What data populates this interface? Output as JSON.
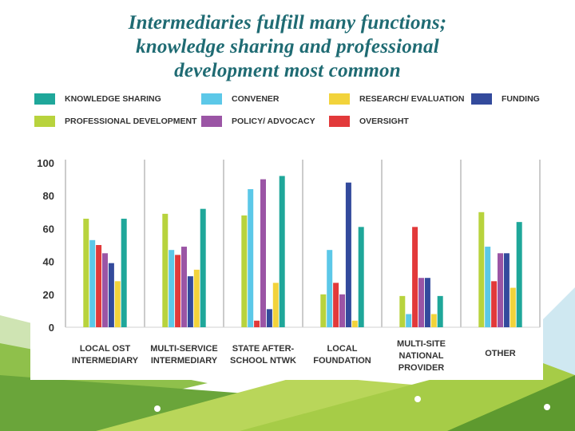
{
  "slide": {
    "title_line1": "Intermediaries fulfill many functions;",
    "title_line2": "knowledge sharing and professional",
    "title_line3": "development most common"
  },
  "colors": {
    "knowledge_sharing": "#1fa79a",
    "convener": "#5cc8e8",
    "research_evaluation": "#f2d33b",
    "funding": "#334a9c",
    "professional_development": "#b8d33d",
    "policy_advocacy": "#9b55a5",
    "oversight": "#e2393a"
  },
  "chart_data": {
    "type": "bar",
    "title": "",
    "xlabel": "",
    "ylabel": "",
    "ylim": [
      0,
      100
    ],
    "yticks": [
      0,
      20,
      40,
      60,
      80,
      100
    ],
    "grid": "vertical separators",
    "legend_position": "top",
    "categories": [
      [
        "LOCAL OST",
        "INTERMEDIARY"
      ],
      [
        "MULTI-SERVICE",
        "INTERMEDIARY"
      ],
      [
        "STATE AFTER-",
        "SCHOOL NTWK"
      ],
      [
        "LOCAL",
        "FOUNDATION"
      ],
      [
        "MULTI-SITE",
        "NATIONAL",
        "PROVIDER"
      ],
      [
        "OTHER"
      ]
    ],
    "series": [
      {
        "name": "PROFESSIONAL DEVELOPMENT",
        "color": "#b8d33d",
        "values": [
          66,
          69,
          68,
          20,
          19,
          70
        ]
      },
      {
        "name": "CONVENER",
        "color": "#5cc8e8",
        "values": [
          53,
          47,
          84,
          47,
          8,
          49
        ]
      },
      {
        "name": "OVERSIGHT",
        "color": "#e2393a",
        "values": [
          50,
          44,
          4,
          27,
          61,
          28
        ]
      },
      {
        "name": "POLICY/ ADVOCACY",
        "color": "#9b55a5",
        "values": [
          45,
          49,
          90,
          20,
          30,
          45
        ]
      },
      {
        "name": "FUNDING",
        "color": "#334a9c",
        "values": [
          39,
          31,
          11,
          88,
          30,
          45
        ]
      },
      {
        "name": "RESEARCH/ EVALUATION",
        "color": "#f2d33b",
        "values": [
          28,
          35,
          27,
          4,
          8,
          24
        ]
      },
      {
        "name": "KNOWLEDGE SHARING",
        "color": "#1fa79a",
        "values": [
          66,
          72,
          92,
          61,
          19,
          64
        ]
      }
    ]
  },
  "legend": [
    {
      "label": "KNOWLEDGE SHARING",
      "color": "#1fa79a",
      "icon": "knowledge-sharing-swatch"
    },
    {
      "label": "CONVENER",
      "color": "#5cc8e8",
      "icon": "convener-swatch"
    },
    {
      "label": "RESEARCH/ EVALUATION",
      "color": "#f2d33b",
      "icon": "research-evaluation-swatch"
    },
    {
      "label": "FUNDING",
      "color": "#334a9c",
      "icon": "funding-swatch"
    },
    {
      "label": "PROFESSIONAL DEVELOPMENT",
      "color": "#b8d33d",
      "icon": "professional-development-swatch"
    },
    {
      "label": "POLICY/ ADVOCACY",
      "color": "#9b55a5",
      "icon": "policy-advocacy-swatch"
    },
    {
      "label": "OVERSIGHT",
      "color": "#e2393a",
      "icon": "oversight-swatch"
    }
  ]
}
